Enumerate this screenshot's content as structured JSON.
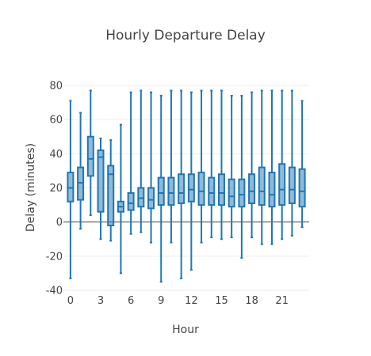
{
  "chart_data": {
    "type": "box",
    "title": "Hourly Departure Delay",
    "xlabel": "Hour",
    "ylabel": "Delay (minutes)",
    "xlim": [
      -0.7,
      23.7
    ],
    "ylim": [
      -40,
      80
    ],
    "xticks": [
      0,
      3,
      6,
      9,
      12,
      15,
      18,
      21
    ],
    "yticks": [
      -40,
      -20,
      0,
      20,
      40,
      60,
      80
    ],
    "grid": true,
    "colors": {
      "box_line": "#1f77b4",
      "box_fill": "rgba(31,119,180,0.5)"
    },
    "boxes": [
      {
        "hour": 0,
        "min": -33,
        "q1": 12,
        "median": 20,
        "q3": 29,
        "max": 71
      },
      {
        "hour": 1,
        "min": -4,
        "q1": 13,
        "median": 23,
        "q3": 32,
        "max": 64
      },
      {
        "hour": 2,
        "min": 4,
        "q1": 27,
        "median": 37,
        "q3": 50,
        "max": 77
      },
      {
        "hour": 3,
        "min": -10,
        "q1": 6,
        "median": 38,
        "q3": 42,
        "max": 49
      },
      {
        "hour": 4,
        "min": -11,
        "q1": -2,
        "median": 28,
        "q3": 33,
        "max": 48
      },
      {
        "hour": 5,
        "min": -30,
        "q1": 6,
        "median": 9,
        "q3": 12,
        "max": 57
      },
      {
        "hour": 6,
        "min": -7,
        "q1": 7,
        "median": 11,
        "q3": 17,
        "max": 76
      },
      {
        "hour": 7,
        "min": -6,
        "q1": 9,
        "median": 14,
        "q3": 20,
        "max": 77
      },
      {
        "hour": 8,
        "min": -12,
        "q1": 8,
        "median": 13,
        "q3": 20,
        "max": 76
      },
      {
        "hour": 9,
        "min": -35,
        "q1": 10,
        "median": 17,
        "q3": 26,
        "max": 74
      },
      {
        "hour": 10,
        "min": -12,
        "q1": 10,
        "median": 17,
        "q3": 26,
        "max": 77
      },
      {
        "hour": 11,
        "min": -33,
        "q1": 11,
        "median": 17,
        "q3": 28,
        "max": 77
      },
      {
        "hour": 12,
        "min": -28,
        "q1": 12,
        "median": 19,
        "q3": 28,
        "max": 76
      },
      {
        "hour": 13,
        "min": -12,
        "q1": 10,
        "median": 18,
        "q3": 29,
        "max": 77
      },
      {
        "hour": 14,
        "min": -9,
        "q1": 10,
        "median": 17,
        "q3": 26,
        "max": 77
      },
      {
        "hour": 15,
        "min": -10,
        "q1": 10,
        "median": 17,
        "q3": 28,
        "max": 77
      },
      {
        "hour": 16,
        "min": -9,
        "q1": 9,
        "median": 15,
        "q3": 25,
        "max": 74
      },
      {
        "hour": 17,
        "min": -21,
        "q1": 9,
        "median": 16,
        "q3": 25,
        "max": 74
      },
      {
        "hour": 18,
        "min": -9,
        "q1": 11,
        "median": 18,
        "q3": 28,
        "max": 76
      },
      {
        "hour": 19,
        "min": -13,
        "q1": 10,
        "median": 18,
        "q3": 32,
        "max": 77
      },
      {
        "hour": 20,
        "min": -13,
        "q1": 9,
        "median": 16,
        "q3": 29,
        "max": 77
      },
      {
        "hour": 21,
        "min": -10,
        "q1": 10,
        "median": 19,
        "q3": 34,
        "max": 77
      },
      {
        "hour": 22,
        "min": -8,
        "q1": 11,
        "median": 19,
        "q3": 32,
        "max": 77
      },
      {
        "hour": 23,
        "min": -3,
        "q1": 9,
        "median": 18,
        "q3": 31,
        "max": 71
      }
    ]
  }
}
